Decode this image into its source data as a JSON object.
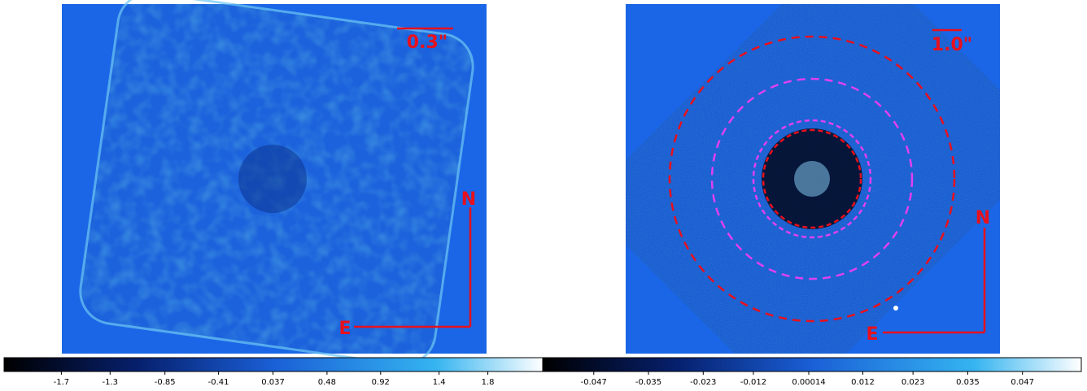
{
  "chart_data": [
    {
      "type": "image",
      "scale_label": "0.3\"",
      "north_label": "N",
      "east_label": "E",
      "xlim": [
        -2.17,
        2.25
      ],
      "xticks": [
        -1.7,
        -1.3,
        -0.85,
        -0.41,
        0.037,
        0.48,
        0.92,
        1.4,
        1.8
      ]
    },
    {
      "type": "image",
      "scale_label": "1.0\"",
      "north_label": "N",
      "east_label": "E",
      "xlim": [
        -0.0582,
        0.0599
      ],
      "xticks": [
        -0.047,
        -0.035,
        -0.023,
        -0.012,
        0.00014,
        0.012,
        0.023,
        0.035,
        0.047
      ]
    }
  ]
}
